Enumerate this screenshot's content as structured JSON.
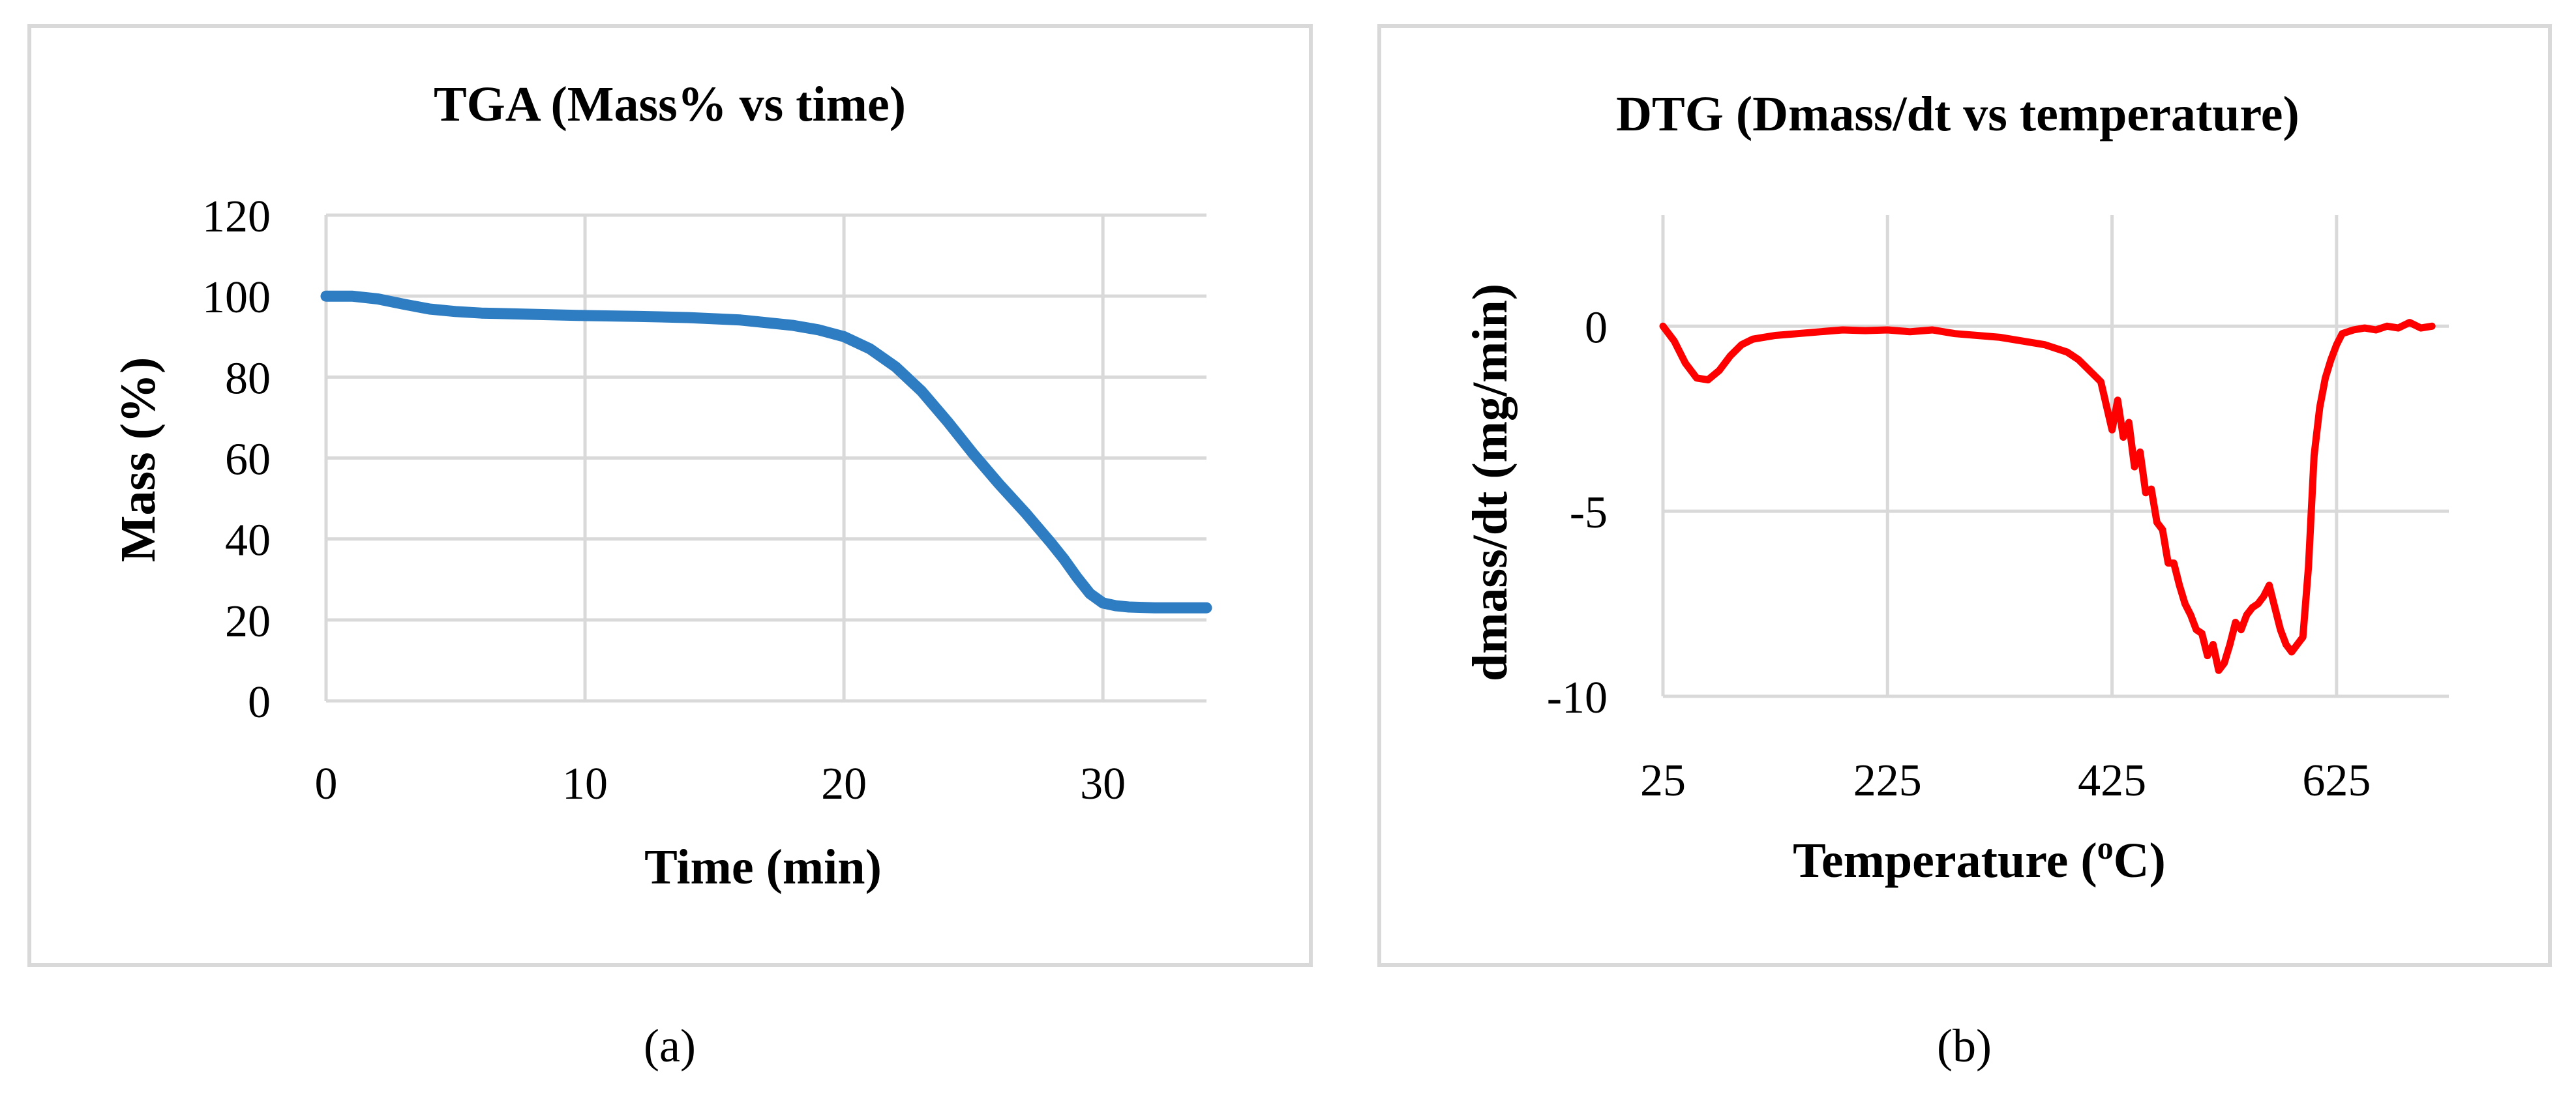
{
  "chart_data": [
    {
      "type": "line",
      "panel": "(a)",
      "title": "TGA (Mass% vs time)",
      "xlabel": "Time (min)",
      "ylabel": "Mass (%)",
      "xlim": [
        0,
        34
      ],
      "ylim": [
        0,
        120
      ],
      "xticks": [
        0,
        10,
        20,
        30
      ],
      "yticks": [
        0,
        20,
        40,
        60,
        80,
        100,
        120
      ],
      "series": [
        {
          "name": "Mass",
          "color": "#2e7dc3",
          "x": [
            0,
            1,
            2,
            3,
            4,
            5,
            6,
            8,
            10,
            12,
            14,
            16,
            18,
            19,
            20,
            21,
            22,
            23,
            24,
            25,
            26,
            27,
            28,
            28.5,
            29,
            29.5,
            30,
            30.5,
            31,
            32,
            34
          ],
          "y": [
            100,
            100,
            99.3,
            98,
            96.8,
            96.2,
            95.8,
            95.5,
            95.2,
            95,
            94.7,
            94.1,
            92.8,
            91.7,
            90,
            87,
            82.5,
            76.5,
            69,
            61,
            53.5,
            46.5,
            39,
            35,
            30.5,
            26.5,
            24.2,
            23.5,
            23.2,
            23,
            23
          ]
        }
      ]
    },
    {
      "type": "line",
      "panel": "(b)",
      "title": "DTG (Dmass/dt vs temperature)",
      "xlabel": "Temperature (",
      "xlabel_sup": "o",
      "xlabel_end": "C)",
      "ylabel": "dmass/dt  (mg/min)",
      "xlim": [
        25,
        725
      ],
      "ylim": [
        -10,
        3
      ],
      "xticks": [
        25,
        225,
        425,
        625
      ],
      "yticks": [
        0,
        -5,
        -10
      ],
      "series": [
        {
          "name": "dmass/dt",
          "color": "#ff0000",
          "x": [
            25,
            35,
            45,
            55,
            65,
            75,
            85,
            95,
            105,
            115,
            125,
            145,
            165,
            185,
            205,
            225,
            245,
            265,
            285,
            305,
            325,
            345,
            365,
            385,
            395,
            405,
            415,
            425,
            430,
            435,
            440,
            445,
            450,
            455,
            460,
            465,
            470,
            475,
            480,
            485,
            490,
            495,
            500,
            505,
            510,
            515,
            520,
            525,
            530,
            535,
            540,
            545,
            550,
            555,
            560,
            565,
            570,
            575,
            580,
            585,
            590,
            595,
            600,
            605,
            610,
            615,
            620,
            625,
            630,
            640,
            650,
            660,
            670,
            680,
            690,
            700,
            710
          ],
          "y": [
            0,
            -0.4,
            -1.0,
            -1.4,
            -1.45,
            -1.2,
            -0.8,
            -0.5,
            -0.35,
            -0.3,
            -0.25,
            -0.2,
            -0.15,
            -0.1,
            -0.12,
            -0.1,
            -0.15,
            -0.1,
            -0.2,
            -0.25,
            -0.3,
            -0.4,
            -0.5,
            -0.7,
            -0.9,
            -1.2,
            -1.5,
            -2.8,
            -2.0,
            -3.0,
            -2.6,
            -3.8,
            -3.4,
            -4.5,
            -4.4,
            -5.3,
            -5.5,
            -6.4,
            -6.4,
            -7.0,
            -7.5,
            -7.8,
            -8.2,
            -8.3,
            -8.9,
            -8.6,
            -9.3,
            -9.1,
            -8.6,
            -8.0,
            -8.2,
            -7.8,
            -7.6,
            -7.5,
            -7.3,
            -7.0,
            -7.6,
            -8.2,
            -8.6,
            -8.8,
            -8.6,
            -8.4,
            -6.5,
            -3.5,
            -2.2,
            -1.4,
            -0.9,
            -0.5,
            -0.2,
            -0.1,
            -0.05,
            -0.1,
            0,
            -0.05,
            0.1,
            -0.05,
            0
          ]
        }
      ]
    }
  ],
  "labels": {
    "left_panel": "(a)",
    "right_panel": "(b)"
  }
}
